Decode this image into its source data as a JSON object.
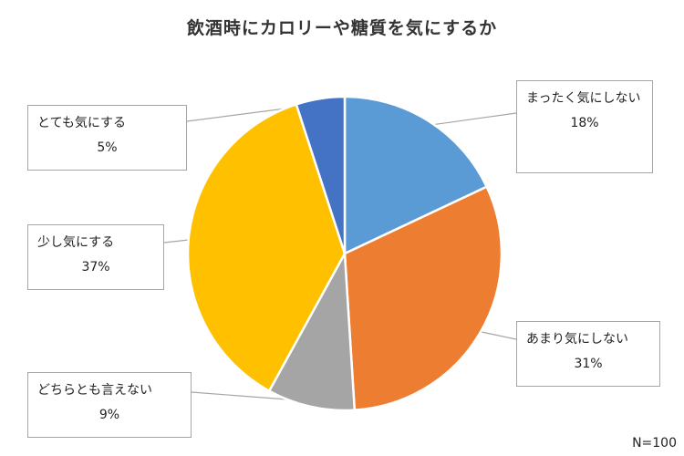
{
  "chart_data": {
    "type": "pie",
    "title": "飲酒時にカロリーや糖質を気にするか",
    "start_angle_deg": 0,
    "direction": "clockwise",
    "slices": [
      {
        "label": "まったく気にしない",
        "value": 18,
        "value_label": "18%",
        "color": "#5b9bd5"
      },
      {
        "label": "あまり気にしない",
        "value": 31,
        "value_label": "31%",
        "color": "#ed7d31"
      },
      {
        "label": "どちらとも言えない",
        "value": 9,
        "value_label": "9%",
        "color": "#a5a5a5"
      },
      {
        "label": "少し気にする",
        "value": 37,
        "value_label": "37%",
        "color": "#ffc000"
      },
      {
        "label": "とても気にする",
        "value": 5,
        "value_label": "5%",
        "color": "#4472c4"
      }
    ]
  },
  "note": "N=100"
}
